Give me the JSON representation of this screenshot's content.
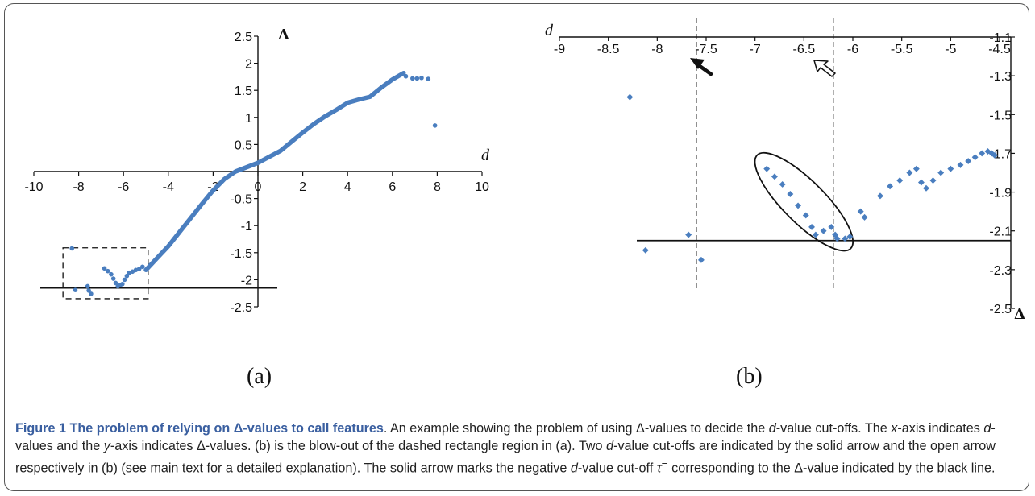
{
  "colors": {
    "point": "#4a7ebf",
    "axis": "#111111",
    "caption_title": "#3a5fa0",
    "caption_text": "#222222"
  },
  "panels": {
    "a_label": "(a)",
    "b_label": "(b)"
  },
  "caption": {
    "title_prefix": "Figure 1 The problem of relying on ",
    "title_symbol": "Δ",
    "title_suffix": "-values to call features",
    "p1": ". An example showing the problem of using Δ-values to decide the ",
    "d1": "d",
    "p2": "-value cut-offs. The ",
    "x1": "x",
    "p3": "-axis indicates ",
    "d2": "d",
    "p4": "-values and the ",
    "y1": "y",
    "p5": "-axis indicates Δ-values. (b) is the blow-out of the dashed rectangle region in (a). Two ",
    "d3": "d",
    "p6": "-value cut-offs are indicated by the solid arrow and the open arrow respectively in (b) (see main text for a detailed explanation). The solid arrow marks the negative ",
    "d4": "d",
    "p7": "-value cut-off ",
    "tau": "τ",
    "tau_sup": "−",
    "p8": " corresponding to the Δ-value indicated by the black line."
  },
  "chart_data": [
    {
      "id": "a",
      "type": "scatter",
      "xlabel": "d",
      "ylabel": "Δ",
      "xlim": [
        -10,
        10
      ],
      "ylim": [
        -2.5,
        2.5
      ],
      "x_ticks": [
        "-10",
        "-8",
        "-6",
        "-4",
        "-2",
        "0",
        "2",
        "4",
        "6",
        "8",
        "10"
      ],
      "x_tick_values": [
        -10,
        -8,
        -6,
        -4,
        -2,
        0,
        2,
        4,
        6,
        8,
        10
      ],
      "y_ticks": [
        "2.5",
        "2",
        "1.5",
        "1",
        "0.5",
        "-0.5",
        "-1",
        "-1.5",
        "-2",
        "-2.5"
      ],
      "y_tick_values": [
        2.5,
        2,
        1.5,
        1,
        0.5,
        -0.5,
        -1,
        -1.5,
        -2,
        -2.5
      ],
      "cutoff_line_y": -2.15,
      "dashed_region": {
        "x": [
          -8.7,
          -4.9
        ],
        "y": [
          -2.35,
          -1.41
        ]
      },
      "series": [
        {
          "curve": [
            [
              -5.0,
              -1.82
            ],
            [
              -4.5,
              -1.6
            ],
            [
              -4.0,
              -1.38
            ],
            [
              -3.5,
              -1.12
            ],
            [
              -3.0,
              -0.86
            ],
            [
              -2.5,
              -0.6
            ],
            [
              -2.0,
              -0.35
            ],
            [
              -1.5,
              -0.14
            ],
            [
              -1.0,
              0.0
            ],
            [
              -0.5,
              0.08
            ],
            [
              0.0,
              0.16
            ],
            [
              0.5,
              0.27
            ],
            [
              1.0,
              0.38
            ],
            [
              1.5,
              0.55
            ],
            [
              2.0,
              0.72
            ],
            [
              2.5,
              0.88
            ],
            [
              3.0,
              1.02
            ],
            [
              3.5,
              1.14
            ],
            [
              4.0,
              1.27
            ],
            [
              4.5,
              1.33
            ],
            [
              5.0,
              1.38
            ],
            [
              5.5,
              1.55
            ],
            [
              6.0,
              1.7
            ],
            [
              6.5,
              1.82
            ]
          ],
          "points": [
            [
              -8.3,
              -1.42
            ],
            [
              -8.15,
              -2.19
            ],
            [
              -7.6,
              -2.12
            ],
            [
              -7.55,
              -2.2
            ],
            [
              -7.45,
              -2.26
            ],
            [
              -6.85,
              -1.79
            ],
            [
              -6.7,
              -1.84
            ],
            [
              -6.55,
              -1.9
            ],
            [
              -6.45,
              -1.98
            ],
            [
              -6.35,
              -2.06
            ],
            [
              -6.25,
              -2.12
            ],
            [
              -6.15,
              -2.1
            ],
            [
              -6.05,
              -2.08
            ],
            [
              -5.95,
              -2.0
            ],
            [
              -5.85,
              -1.93
            ],
            [
              -5.75,
              -1.87
            ],
            [
              -5.6,
              -1.85
            ],
            [
              -5.45,
              -1.82
            ],
            [
              -5.3,
              -1.8
            ],
            [
              -5.15,
              -1.76
            ],
            [
              6.6,
              1.76
            ],
            [
              6.9,
              1.72
            ],
            [
              7.1,
              1.72
            ],
            [
              7.3,
              1.73
            ],
            [
              7.6,
              1.71
            ],
            [
              7.9,
              0.85
            ]
          ]
        }
      ]
    },
    {
      "id": "b",
      "type": "scatter",
      "xlabel": "d",
      "ylabel": "Δ",
      "xlim": [
        -9,
        -4.5
      ],
      "ylim": [
        -2.5,
        -1.1
      ],
      "x_ticks": [
        "-9",
        "-8.5",
        "-8",
        "-7.5",
        "-7",
        "-6.5",
        "-6",
        "-5.5",
        "-5",
        "-4.5"
      ],
      "x_tick_values": [
        -9,
        -8.5,
        -8,
        -7.5,
        -7,
        -6.5,
        -6,
        -5.5,
        -5,
        -4.5
      ],
      "y_ticks": [
        "-1.1",
        "-1.3",
        "-1.5",
        "-1.7",
        "-1.9",
        "-2.1",
        "-2.3",
        "-2.5"
      ],
      "y_tick_values": [
        -1.1,
        -1.3,
        -1.5,
        -1.7,
        -1.9,
        -2.1,
        -2.3,
        -2.5
      ],
      "cutoff_line_y": -2.15,
      "cutoff_x": [
        -7.6,
        -6.2
      ],
      "series": [
        {
          "points": [
            [
              -8.28,
              -1.41
            ],
            [
              -8.12,
              -2.2
            ],
            [
              -7.68,
              -2.12
            ],
            [
              -7.55,
              -2.25
            ],
            [
              -6.88,
              -1.78
            ],
            [
              -6.8,
              -1.82
            ],
            [
              -6.72,
              -1.86
            ],
            [
              -6.64,
              -1.91
            ],
            [
              -6.56,
              -1.97
            ],
            [
              -6.48,
              -2.02
            ],
            [
              -6.42,
              -2.08
            ],
            [
              -6.38,
              -2.12
            ],
            [
              -6.3,
              -2.1
            ],
            [
              -6.22,
              -2.08
            ],
            [
              -6.18,
              -2.12
            ],
            [
              -6.16,
              -2.14
            ],
            [
              -6.08,
              -2.14
            ],
            [
              -6.03,
              -2.13
            ],
            [
              -5.92,
              -2.0
            ],
            [
              -5.88,
              -2.03
            ],
            [
              -5.72,
              -1.92
            ],
            [
              -5.62,
              -1.87
            ],
            [
              -5.52,
              -1.84
            ],
            [
              -5.42,
              -1.8
            ],
            [
              -5.35,
              -1.78
            ],
            [
              -5.3,
              -1.85
            ],
            [
              -5.25,
              -1.88
            ],
            [
              -5.18,
              -1.84
            ],
            [
              -5.1,
              -1.8
            ],
            [
              -5.0,
              -1.78
            ],
            [
              -4.9,
              -1.76
            ],
            [
              -4.82,
              -1.74
            ],
            [
              -4.75,
              -1.72
            ],
            [
              -4.68,
              -1.7
            ],
            [
              -4.62,
              -1.69
            ],
            [
              -4.58,
              -1.7
            ],
            [
              -4.55,
              -1.71
            ]
          ]
        }
      ]
    }
  ]
}
